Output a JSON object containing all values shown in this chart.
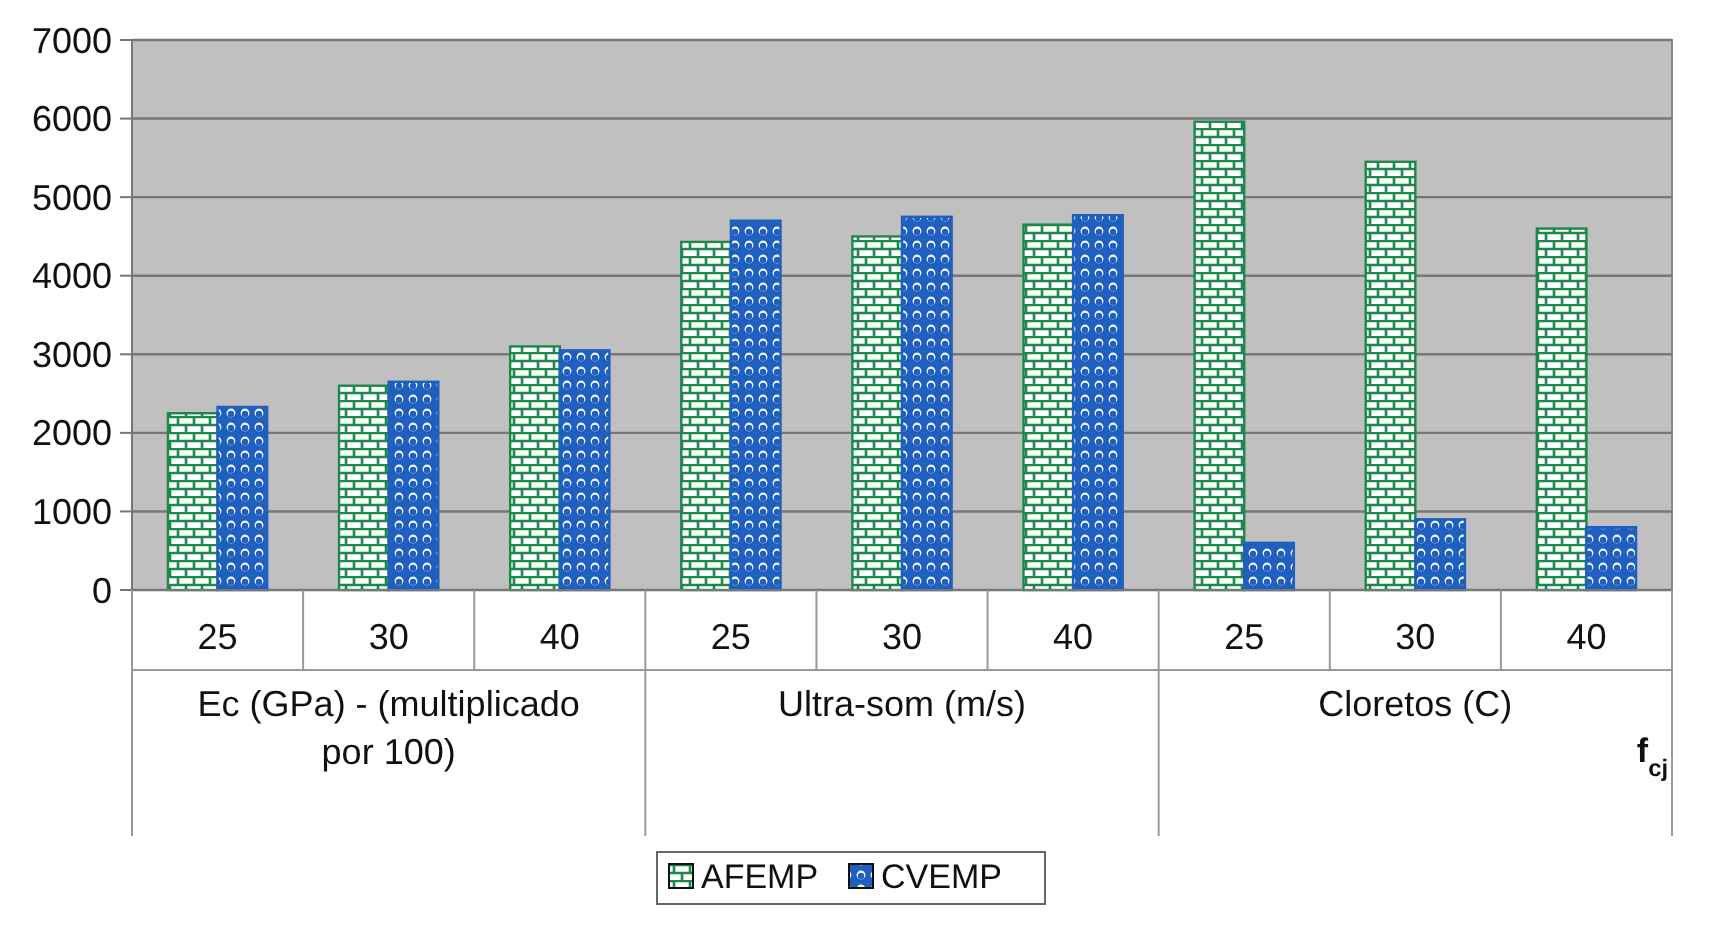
{
  "chart_data": {
    "type": "bar",
    "categories": [
      "25",
      "30",
      "40",
      "25",
      "30",
      "40",
      "25",
      "30",
      "40"
    ],
    "series": [
      {
        "name": "AFEMP",
        "color": "#1a8a4a",
        "values": [
          2250,
          2600,
          3100,
          4430,
          4500,
          4650,
          5960,
          5450,
          4600
        ]
      },
      {
        "name": "CVEMP",
        "color": "#1f5fbf",
        "values": [
          2330,
          2650,
          3050,
          4700,
          4750,
          4770,
          600,
          900,
          800
        ]
      }
    ],
    "annotations": [
      "Ec (GPa) - (multiplicado por 100)",
      "Ultra-som (m/s)",
      "Cloretos (C)"
    ],
    "xlabel": "f$_{cj}$",
    "ylim": [
      0,
      7000
    ],
    "yticks": [
      0,
      1000,
      2000,
      3000,
      4000,
      5000,
      6000,
      7000
    ],
    "grid": "y",
    "legend": "bottom"
  }
}
